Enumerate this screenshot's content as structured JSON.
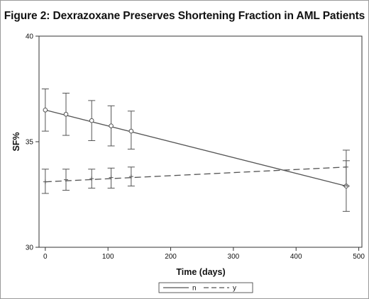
{
  "title": "Figure 2: Dexrazoxane Preserves Shortening Fraction in AML Patients",
  "chart_data": {
    "type": "line",
    "xlabel": "Time (days)",
    "ylabel": "SF%",
    "xlim": [
      -10,
      505
    ],
    "ylim": [
      30,
      40
    ],
    "xticks": [
      0,
      100,
      200,
      300,
      400,
      500
    ],
    "yticks": [
      30,
      35,
      40
    ],
    "grid": false,
    "legend_position": "bottom",
    "series": [
      {
        "name": "n",
        "style": "solid",
        "color": "#555555",
        "points": [
          {
            "x": 0,
            "y": 36.5,
            "lo": 35.5,
            "hi": 37.5
          },
          {
            "x": 33,
            "y": 36.3,
            "lo": 35.3,
            "hi": 37.3
          },
          {
            "x": 74,
            "y": 36.0,
            "lo": 35.05,
            "hi": 36.95
          },
          {
            "x": 105,
            "y": 35.75,
            "lo": 34.8,
            "hi": 36.7
          },
          {
            "x": 137,
            "y": 35.5,
            "lo": 34.65,
            "hi": 36.45
          },
          {
            "x": 480,
            "y": 32.9,
            "lo": 31.7,
            "hi": 34.1
          }
        ],
        "trend": [
          [
            0,
            36.5
          ],
          [
            480,
            32.9
          ]
        ]
      },
      {
        "name": "y",
        "style": "dashed",
        "color": "#555555",
        "points": [
          {
            "x": 0,
            "y": 33.1,
            "lo": 32.55,
            "hi": 33.7
          },
          {
            "x": 33,
            "y": 33.2,
            "lo": 32.7,
            "hi": 33.7
          },
          {
            "x": 74,
            "y": 33.25,
            "lo": 32.8,
            "hi": 33.7
          },
          {
            "x": 105,
            "y": 33.3,
            "lo": 32.8,
            "hi": 33.75
          },
          {
            "x": 137,
            "y": 33.35,
            "lo": 32.9,
            "hi": 33.8
          },
          {
            "x": 480,
            "y": 33.8,
            "lo": 32.9,
            "hi": 34.6
          }
        ],
        "trend": [
          [
            0,
            33.1
          ],
          [
            480,
            33.8
          ]
        ]
      }
    ]
  }
}
